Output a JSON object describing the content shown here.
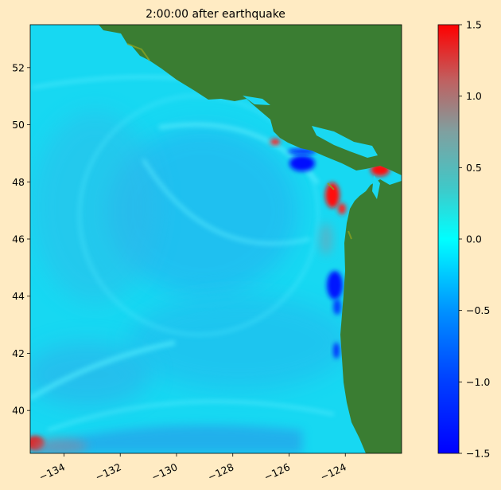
{
  "chart_data": {
    "type": "heatmap",
    "title": "2:00:00 after earthquake",
    "xlabel": "",
    "ylabel": "",
    "xlim": [
      -135.2,
      -122.0
    ],
    "ylim": [
      38.5,
      53.5
    ],
    "x_ticks": [
      -134,
      -132,
      -130,
      -128,
      -126,
      -124
    ],
    "x_tick_labels": [
      "−134",
      "−132",
      "−130",
      "−128",
      "−126",
      "−124"
    ],
    "y_ticks": [
      40,
      42,
      44,
      46,
      48,
      50,
      52
    ],
    "y_tick_labels": [
      "40",
      "42",
      "44",
      "46",
      "48",
      "50",
      "52"
    ],
    "colorbar": {
      "range": [
        -1.5,
        1.5
      ],
      "ticks": [
        -1.5,
        -1.0,
        -0.5,
        0.0,
        0.5,
        1.0,
        1.5
      ],
      "tick_labels": [
        "−1.5",
        "−1.0",
        "−0.5",
        "0.0",
        "0.5",
        "1.0",
        "1.5"
      ],
      "colors": [
        "#0000ff",
        "#0080ff",
        "#00ffff",
        "#40b0b0",
        "#b06060",
        "#ff0000"
      ]
    },
    "colors": {
      "background": "#ffebc3",
      "land": "#3a7d32",
      "ocean_base": "#1ad8f0"
    },
    "features": [
      {
        "name": "positive-anomaly-coast-48N",
        "lon": -124.7,
        "lat": 47.3,
        "value": 1.5
      },
      {
        "name": "positive-anomaly-juan-de-fuca",
        "lon": -123.0,
        "lat": 48.3,
        "value": 1.5
      },
      {
        "name": "negative-anomaly-49N",
        "lon": -125.5,
        "lat": 48.5,
        "value": -1.5
      },
      {
        "name": "negative-anomaly-44N",
        "lon": -124.5,
        "lat": 44.4,
        "value": -1.5
      },
      {
        "name": "negative-anomaly-42N",
        "lon": -124.4,
        "lat": 42.2,
        "value": -1.3
      },
      {
        "name": "positive-anomaly-sw-corner",
        "lon": -135.0,
        "lat": 38.9,
        "value": 1.2
      }
    ],
    "grid": false,
    "legend": "none"
  }
}
